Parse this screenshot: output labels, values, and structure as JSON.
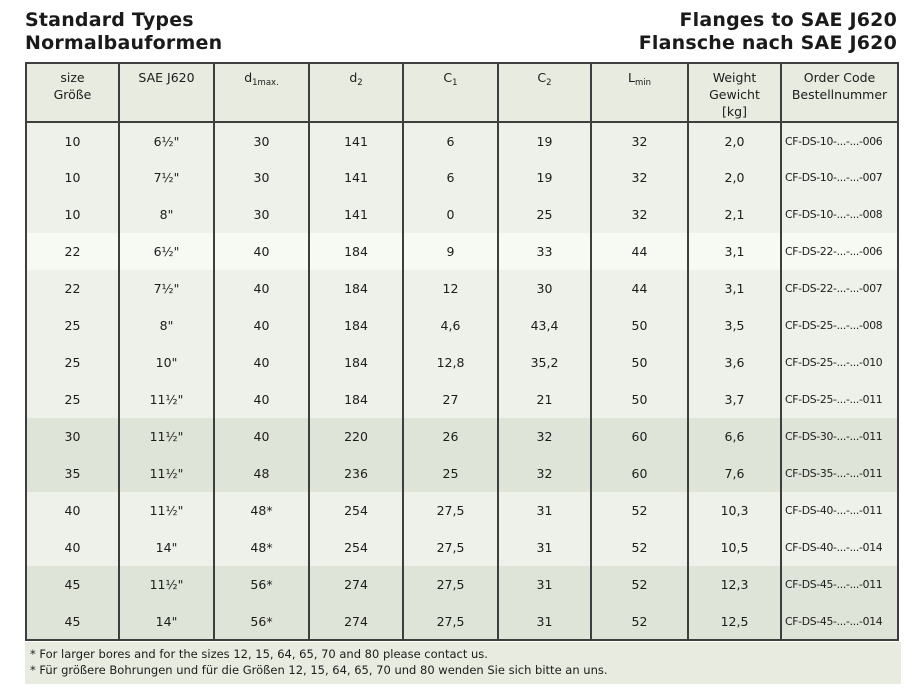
{
  "page": {
    "title_left_line1": "Standard Types",
    "title_left_line2": "Normalbauformen",
    "title_right_line1": "Flanges to SAE J620",
    "title_right_line2": "Flansche nach SAE J620"
  },
  "table": {
    "columns": [
      {
        "id": "size",
        "line1": "size",
        "line2": "Größe"
      },
      {
        "id": "sae",
        "line1": "SAE J620"
      },
      {
        "id": "d1max",
        "base": "d",
        "sub": "1max."
      },
      {
        "id": "d2",
        "base": "d",
        "sub": "2"
      },
      {
        "id": "c1",
        "base": "C",
        "sub": "1"
      },
      {
        "id": "c2",
        "base": "C",
        "sub": "2"
      },
      {
        "id": "lmin",
        "base": "L",
        "sub": "min"
      },
      {
        "id": "weight",
        "line1": "Weight",
        "line2": "Gewicht",
        "line3": "[kg]"
      },
      {
        "id": "order",
        "line1": "Order Code",
        "line2": "Bestellnummer"
      }
    ],
    "rows": [
      {
        "shade": "sage",
        "cells": [
          "10",
          "6½\"",
          "30",
          "141",
          "6",
          "19",
          "32",
          "2,0",
          "CF-DS-10-...-...-006"
        ]
      },
      {
        "shade": "sage",
        "cells": [
          "10",
          "7½\"",
          "30",
          "141",
          "6",
          "19",
          "32",
          "2,0",
          "CF-DS-10-...-...-007"
        ]
      },
      {
        "shade": "sage",
        "cells": [
          "10",
          "8\"",
          "30",
          "141",
          "0",
          "25",
          "32",
          "2,1",
          "CF-DS-10-...-...-008"
        ]
      },
      {
        "shade": "pale",
        "cells": [
          "22",
          "6½\"",
          "40",
          "184",
          "9",
          "33",
          "44",
          "3,1",
          "CF-DS-22-...-...-006"
        ]
      },
      {
        "shade": "sage",
        "cells": [
          "22",
          "7½\"",
          "40",
          "184",
          "12",
          "30",
          "44",
          "3,1",
          "CF-DS-22-...-...-007"
        ]
      },
      {
        "shade": "sage",
        "cells": [
          "25",
          "8\"",
          "40",
          "184",
          "4,6",
          "43,4",
          "50",
          "3,5",
          "CF-DS-25-...-...-008"
        ]
      },
      {
        "shade": "sage",
        "cells": [
          "25",
          "10\"",
          "40",
          "184",
          "12,8",
          "35,2",
          "50",
          "3,6",
          "CF-DS-25-...-...-010"
        ]
      },
      {
        "shade": "sage",
        "cells": [
          "25",
          "11½\"",
          "40",
          "184",
          "27",
          "21",
          "50",
          "3,7",
          "CF-DS-25-...-...-011"
        ]
      },
      {
        "shade": "dark",
        "cells": [
          "30",
          "11½\"",
          "40",
          "220",
          "26",
          "32",
          "60",
          "6,6",
          "CF-DS-30-...-...-011"
        ]
      },
      {
        "shade": "dark",
        "cells": [
          "35",
          "11½\"",
          "48",
          "236",
          "25",
          "32",
          "60",
          "7,6",
          "CF-DS-35-...-...-011"
        ]
      },
      {
        "shade": "sage",
        "cells": [
          "40",
          "11½\"",
          "48*",
          "254",
          "27,5",
          "31",
          "52",
          "10,3",
          "CF-DS-40-...-...-011"
        ]
      },
      {
        "shade": "sage",
        "cells": [
          "40",
          "14\"",
          "48*",
          "254",
          "27,5",
          "31",
          "52",
          "10,5",
          "CF-DS-40-...-...-014"
        ]
      },
      {
        "shade": "dark",
        "cells": [
          "45",
          "11½\"",
          "56*",
          "274",
          "27,5",
          "31",
          "52",
          "12,3",
          "CF-DS-45-...-...-011"
        ]
      },
      {
        "shade": "dark",
        "cells": [
          "45",
          "14\"",
          "56*",
          "274",
          "27,5",
          "31",
          "52",
          "12,5",
          "CF-DS-45-...-...-014"
        ]
      }
    ]
  },
  "footnotes": [
    "* For larger bores and for the sizes 12, 15, 64, 65, 70 and 80 please contact us.",
    "* Für größere Bohrungen und für die Größen 12, 15, 64, 65, 70 und 80 wenden Sie sich bitte an uns."
  ],
  "colors": {
    "row_sage": "#edf1e9",
    "row_pale": "#f7f9f3",
    "row_dark": "#dfe4d8",
    "band_bg": "#e7ebe0",
    "border": "#3e3e3e",
    "text": "#1c1c1c"
  }
}
